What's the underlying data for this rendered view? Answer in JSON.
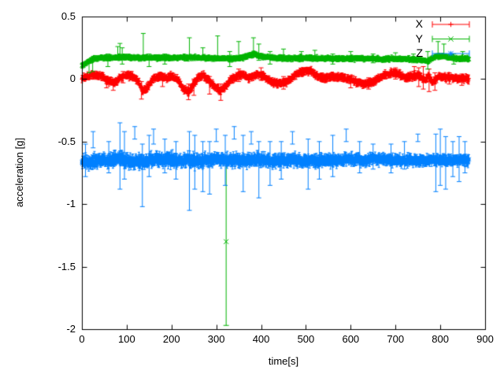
{
  "chart_data": {
    "type": "scatter",
    "style": "errorbars",
    "title": "",
    "xlabel": "time[s]",
    "ylabel": "acceleration [g]",
    "xlim": [
      0,
      900
    ],
    "ylim": [
      -2,
      0.5
    ],
    "xticks": [
      0,
      100,
      200,
      300,
      400,
      500,
      600,
      700,
      800,
      900
    ],
    "yticks": [
      0.5,
      0,
      -0.5,
      -1,
      -1.5,
      -2
    ],
    "ytick_labels": [
      "0.5",
      "0",
      "-0.5",
      "-1",
      "-1.5",
      "-2"
    ],
    "grid": false,
    "legend_position": "top-right",
    "background_color": "#ffffff",
    "frame_color": "#000000",
    "series": [
      {
        "name": "X",
        "color": "#ff0000",
        "marker": "plus",
        "t_start": 0,
        "t_end": 864,
        "step": 0.8,
        "noise": 0.016,
        "errbar": 0.022,
        "keypoints": [
          [
            0,
            0.005
          ],
          [
            12,
            0.02
          ],
          [
            25,
            0.035
          ],
          [
            45,
            0.025
          ],
          [
            58,
            -0.02
          ],
          [
            72,
            -0.03
          ],
          [
            88,
            0.015
          ],
          [
            102,
            0.03
          ],
          [
            115,
            0.02
          ],
          [
            128,
            -0.03
          ],
          [
            136,
            -0.095
          ],
          [
            146,
            -0.07
          ],
          [
            158,
            0.0
          ],
          [
            172,
            0.02
          ],
          [
            188,
            0.01
          ],
          [
            202,
            0.02
          ],
          [
            214,
            -0.005
          ],
          [
            226,
            -0.08
          ],
          [
            237,
            -0.105
          ],
          [
            248,
            -0.05
          ],
          [
            260,
            0.02
          ],
          [
            272,
            0.03
          ],
          [
            284,
            -0.015
          ],
          [
            296,
            -0.055
          ],
          [
            308,
            -0.095
          ],
          [
            320,
            -0.065
          ],
          [
            332,
            -0.005
          ],
          [
            347,
            0.025
          ],
          [
            360,
            0.04
          ],
          [
            372,
            0.01
          ],
          [
            383,
            0.03
          ],
          [
            394,
            0.04
          ],
          [
            408,
            0.02
          ],
          [
            422,
            -0.02
          ],
          [
            438,
            -0.035
          ],
          [
            452,
            -0.03
          ],
          [
            466,
            0.0
          ],
          [
            478,
            0.04
          ],
          [
            492,
            0.06
          ],
          [
            505,
            0.07
          ],
          [
            516,
            0.055
          ],
          [
            528,
            0.02
          ],
          [
            542,
            0.01
          ],
          [
            556,
            0.02
          ],
          [
            570,
            0.015
          ],
          [
            584,
            0.01
          ],
          [
            598,
            0.0
          ],
          [
            612,
            -0.02
          ],
          [
            628,
            -0.035
          ],
          [
            642,
            -0.03
          ],
          [
            656,
            -0.005
          ],
          [
            668,
            0.02
          ],
          [
            682,
            0.04
          ],
          [
            698,
            0.05
          ],
          [
            710,
            0.035
          ],
          [
            722,
            0.01
          ],
          [
            735,
            0.02
          ],
          [
            748,
            0.035
          ],
          [
            758,
            0.015
          ],
          [
            766,
            -0.01
          ],
          [
            774,
            0.025
          ],
          [
            782,
            -0.03
          ],
          [
            790,
            0.0
          ],
          [
            800,
            0.02
          ],
          [
            815,
            0.015
          ],
          [
            832,
            0.01
          ],
          [
            848,
            0.005
          ],
          [
            864,
            0.0
          ]
        ],
        "spikes": [
          [
            55,
            -0.07,
            0.01
          ],
          [
            70,
            -0.09,
            0.0
          ],
          [
            92,
            -0.03,
            0.06
          ],
          [
            133,
            -0.16,
            -0.02
          ],
          [
            180,
            -0.06,
            0.04
          ],
          [
            238,
            -0.165,
            -0.04
          ],
          [
            250,
            -0.13,
            0.0
          ],
          [
            285,
            -0.12,
            0.02
          ],
          [
            310,
            -0.17,
            -0.04
          ],
          [
            350,
            -0.02,
            0.08
          ],
          [
            400,
            -0.01,
            0.09
          ],
          [
            450,
            -0.08,
            0.02
          ],
          [
            600,
            -0.07,
            0.02
          ],
          [
            640,
            -0.08,
            0.01
          ],
          [
            700,
            0.0,
            0.09
          ],
          [
            742,
            0.0,
            0.1
          ],
          [
            752,
            -0.06,
            0.09
          ],
          [
            762,
            -0.08,
            0.1
          ],
          [
            775,
            -0.1,
            0.08
          ],
          [
            788,
            -0.09,
            0.05
          ],
          [
            820,
            -0.04,
            0.05
          ],
          [
            848,
            -0.05,
            0.04
          ]
        ],
        "outliers": []
      },
      {
        "name": "Y",
        "color": "#00b400",
        "marker": "cross",
        "t_start": 0,
        "t_end": 864,
        "step": 0.8,
        "noise": 0.011,
        "errbar": 0.015,
        "keypoints": [
          [
            0,
            0.105
          ],
          [
            10,
            0.13
          ],
          [
            25,
            0.16
          ],
          [
            40,
            0.17
          ],
          [
            70,
            0.17
          ],
          [
            90,
            0.175
          ],
          [
            120,
            0.17
          ],
          [
            150,
            0.17
          ],
          [
            180,
            0.17
          ],
          [
            210,
            0.17
          ],
          [
            240,
            0.175
          ],
          [
            270,
            0.17
          ],
          [
            300,
            0.165
          ],
          [
            322,
            0.165
          ],
          [
            340,
            0.165
          ],
          [
            360,
            0.17
          ],
          [
            375,
            0.19
          ],
          [
            385,
            0.2
          ],
          [
            395,
            0.185
          ],
          [
            410,
            0.175
          ],
          [
            430,
            0.17
          ],
          [
            460,
            0.165
          ],
          [
            490,
            0.17
          ],
          [
            520,
            0.165
          ],
          [
            550,
            0.165
          ],
          [
            580,
            0.16
          ],
          [
            610,
            0.165
          ],
          [
            640,
            0.165
          ],
          [
            670,
            0.16
          ],
          [
            700,
            0.165
          ],
          [
            730,
            0.16
          ],
          [
            760,
            0.155
          ],
          [
            772,
            0.14
          ],
          [
            780,
            0.165
          ],
          [
            795,
            0.185
          ],
          [
            810,
            0.18
          ],
          [
            825,
            0.17
          ],
          [
            840,
            0.165
          ],
          [
            864,
            0.165
          ]
        ],
        "spikes": [
          [
            16,
            0.05,
            0.15
          ],
          [
            24,
            0.06,
            0.16
          ],
          [
            58,
            0.1,
            0.2
          ],
          [
            80,
            0.16,
            0.26
          ],
          [
            85,
            0.15,
            0.285
          ],
          [
            90,
            0.12,
            0.25
          ],
          [
            137,
            0.17,
            0.365
          ],
          [
            150,
            0.1,
            0.2
          ],
          [
            185,
            0.12,
            0.2
          ],
          [
            240,
            0.17,
            0.33
          ],
          [
            270,
            0.15,
            0.25
          ],
          [
            303,
            0.16,
            0.345
          ],
          [
            330,
            0.1,
            0.22
          ],
          [
            350,
            0.16,
            0.3
          ],
          [
            383,
            0.2,
            0.33
          ],
          [
            395,
            0.15,
            0.28
          ],
          [
            420,
            0.12,
            0.22
          ],
          [
            450,
            0.16,
            0.24
          ],
          [
            490,
            0.14,
            0.22
          ],
          [
            520,
            0.15,
            0.23
          ],
          [
            560,
            0.12,
            0.2
          ],
          [
            600,
            0.14,
            0.22
          ],
          [
            650,
            0.13,
            0.2
          ],
          [
            700,
            0.14,
            0.21
          ],
          [
            740,
            0.13,
            0.2
          ],
          [
            772,
            0.08,
            0.22
          ],
          [
            795,
            0.17,
            0.3
          ],
          [
            808,
            0.17,
            0.28
          ],
          [
            830,
            0.12,
            0.2
          ],
          [
            850,
            0.14,
            0.22
          ]
        ],
        "outliers": [
          {
            "t": 322,
            "v": -1.3,
            "lo": -1.97,
            "hi": -0.63
          }
        ]
      },
      {
        "name": "Z",
        "color": "#0080ff",
        "marker": "star",
        "t_start": 0,
        "t_end": 864,
        "step": 0.7,
        "noise": 0.04,
        "errbar": 0.03,
        "noise_profile": [
          [
            0,
            0.045
          ],
          [
            100,
            0.05
          ],
          [
            250,
            0.045
          ],
          [
            400,
            0.042
          ],
          [
            550,
            0.038
          ],
          [
            650,
            0.03
          ],
          [
            750,
            0.026
          ],
          [
            800,
            0.024
          ],
          [
            864,
            0.02
          ]
        ],
        "keypoints": [
          [
            0,
            -0.655
          ],
          [
            30,
            -0.66
          ],
          [
            60,
            -0.65
          ],
          [
            85,
            -0.64
          ],
          [
            110,
            -0.66
          ],
          [
            135,
            -0.66
          ],
          [
            160,
            -0.65
          ],
          [
            185,
            -0.64
          ],
          [
            210,
            -0.65
          ],
          [
            235,
            -0.64
          ],
          [
            260,
            -0.655
          ],
          [
            285,
            -0.65
          ],
          [
            310,
            -0.64
          ],
          [
            330,
            -0.65
          ],
          [
            350,
            -0.645
          ],
          [
            370,
            -0.65
          ],
          [
            390,
            -0.64
          ],
          [
            410,
            -0.65
          ],
          [
            430,
            -0.655
          ],
          [
            450,
            -0.65
          ],
          [
            470,
            -0.645
          ],
          [
            490,
            -0.655
          ],
          [
            510,
            -0.65
          ],
          [
            530,
            -0.655
          ],
          [
            550,
            -0.65
          ],
          [
            570,
            -0.655
          ],
          [
            590,
            -0.64
          ],
          [
            610,
            -0.645
          ],
          [
            630,
            -0.65
          ],
          [
            650,
            -0.64
          ],
          [
            670,
            -0.645
          ],
          [
            690,
            -0.65
          ],
          [
            710,
            -0.65
          ],
          [
            730,
            -0.645
          ],
          [
            750,
            -0.65
          ],
          [
            770,
            -0.65
          ],
          [
            790,
            -0.645
          ],
          [
            810,
            -0.65
          ],
          [
            830,
            -0.65
          ],
          [
            850,
            -0.645
          ],
          [
            864,
            -0.65
          ]
        ],
        "spikes": [
          [
            8,
            -0.78,
            -0.52
          ],
          [
            25,
            -0.55,
            -0.42
          ],
          [
            60,
            -0.75,
            -0.5
          ],
          [
            85,
            -0.88,
            -0.35
          ],
          [
            95,
            -0.8,
            -0.42
          ],
          [
            118,
            -0.48,
            -0.38
          ],
          [
            135,
            -1.02,
            -0.52
          ],
          [
            150,
            -0.78,
            -0.45
          ],
          [
            160,
            -0.52,
            -0.4
          ],
          [
            185,
            -0.75,
            -0.48
          ],
          [
            210,
            -0.8,
            -0.5
          ],
          [
            240,
            -1.05,
            -0.42
          ],
          [
            252,
            -0.88,
            -0.45
          ],
          [
            270,
            -0.9,
            -0.5
          ],
          [
            285,
            -0.92,
            -0.5
          ],
          [
            300,
            -0.5,
            -0.4
          ],
          [
            320,
            -0.85,
            -0.45
          ],
          [
            340,
            -0.48,
            -0.38
          ],
          [
            360,
            -0.9,
            -0.45
          ],
          [
            378,
            -0.52,
            -0.42
          ],
          [
            395,
            -0.95,
            -0.5
          ],
          [
            420,
            -0.85,
            -0.5
          ],
          [
            445,
            -0.8,
            -0.5
          ],
          [
            470,
            -0.52,
            -0.42
          ],
          [
            505,
            -0.88,
            -0.48
          ],
          [
            530,
            -0.8,
            -0.5
          ],
          [
            560,
            -0.78,
            -0.45
          ],
          [
            590,
            -0.5,
            -0.4
          ],
          [
            620,
            -0.75,
            -0.5
          ],
          [
            650,
            -0.72,
            -0.52
          ],
          [
            690,
            -0.75,
            -0.52
          ],
          [
            720,
            -0.72,
            -0.5
          ],
          [
            750,
            -0.5,
            -0.44
          ],
          [
            790,
            -0.9,
            -0.44
          ],
          [
            800,
            -0.85,
            -0.4
          ],
          [
            812,
            -0.88,
            -0.46
          ],
          [
            828,
            -0.78,
            -0.5
          ],
          [
            842,
            -0.82,
            -0.46
          ],
          [
            855,
            -0.75,
            -0.5
          ]
        ],
        "outliers": []
      }
    ],
    "legend": [
      {
        "label": "X",
        "color": "#ff0000",
        "marker": "plus"
      },
      {
        "label": "Y",
        "color": "#00b400",
        "marker": "cross"
      },
      {
        "label": "Z",
        "color": "#0080ff",
        "marker": "star"
      }
    ]
  }
}
